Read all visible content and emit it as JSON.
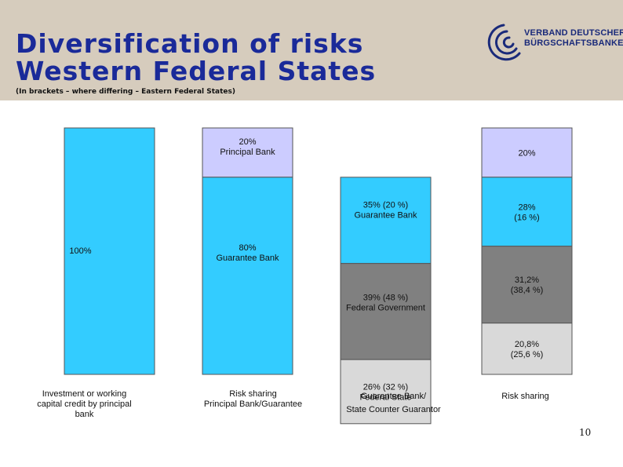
{
  "slide": {
    "title_line1": "Diversification of risks",
    "title_line2": "Western Federal States",
    "subtitle": "(In brackets – where differing – Eastern Federal States)",
    "logo_line1": "VERBAND DEUTSCHER",
    "logo_line2": "BÜRGSCHAFTSBANKEN",
    "page_number": "10"
  },
  "colors": {
    "header": "#d6ccbd",
    "title": "#1a2a99",
    "principal_bank": "#ccccff",
    "guarantee_bank": "#33ccff",
    "federal_government": "#808080",
    "federal_state": "#d9d9d9"
  },
  "chart_data": {
    "type": "bar",
    "stacked": true,
    "unit": "%",
    "categories": [
      "Investment or working capital credit by principal bank",
      "Risk sharing Principal Bank/Guarantee",
      "Guarantee Bank/ State Counter Guarantor",
      "Risk sharing"
    ],
    "category_lines": [
      [
        "Investment or working",
        "capital credit by principal",
        "bank"
      ],
      [
        "Risk sharing",
        "Principal Bank/Guarantee"
      ],
      [
        "Guarantee Bank/",
        "State Counter Guarantor"
      ],
      [
        "Risk sharing"
      ]
    ],
    "columns": [
      {
        "segments": [
          {
            "value": 100,
            "color_key": "guarantee_bank",
            "label_lines": [
              "100%"
            ]
          }
        ]
      },
      {
        "segments": [
          {
            "value": 20,
            "color_key": "principal_bank",
            "label_lines": [
              "20%",
              "Principal Bank"
            ]
          },
          {
            "value": 80,
            "color_key": "guarantee_bank",
            "label_lines": [
              "80%",
              "Guarantee Bank"
            ]
          }
        ]
      },
      {
        "offset": 20,
        "segments": [
          {
            "value": 35,
            "color_key": "guarantee_bank",
            "label_lines": [
              "35% (20 %)",
              "Guarantee Bank"
            ]
          },
          {
            "value": 39,
            "color_key": "federal_government",
            "label_lines": [
              "39% (48 %)",
              "Federal Government"
            ]
          },
          {
            "value": 26,
            "color_key": "federal_state",
            "label_lines": [
              "26% (32 %)",
              "Federal State"
            ]
          }
        ]
      },
      {
        "segments": [
          {
            "value": 20,
            "color_key": "principal_bank",
            "label_lines": [
              "20%"
            ]
          },
          {
            "value": 28,
            "color_key": "guarantee_bank",
            "label_lines": [
              "28%",
              "(16 %)"
            ]
          },
          {
            "value": 31.2,
            "color_key": "federal_government",
            "label_lines": [
              "31,2%",
              "(38,4 %)"
            ]
          },
          {
            "value": 20.8,
            "color_key": "federal_state",
            "label_lines": [
              "20,8%",
              "(25,6 %)"
            ]
          }
        ]
      }
    ]
  }
}
